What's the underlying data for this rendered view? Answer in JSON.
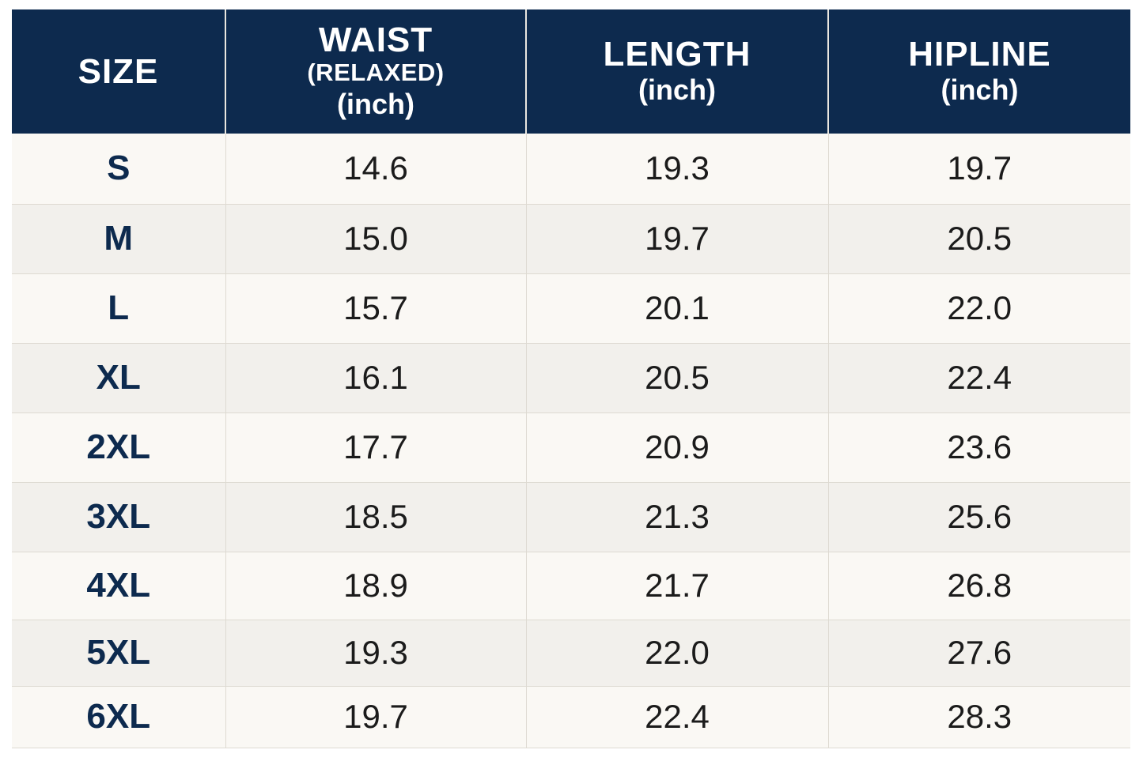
{
  "colors": {
    "header_bg": "#0d2a4e",
    "header_text": "#ffffff",
    "size_text": "#0d2a4e",
    "value_text": "#1b1b1b",
    "row_light": "#faf8f4",
    "row_dark": "#f2f0ec"
  },
  "header": {
    "size": "SIZE",
    "waist": {
      "title": "WAIST",
      "note": "(RELAXED)",
      "unit": "(inch)"
    },
    "length": {
      "title": "LENGTH",
      "unit": "(inch)"
    },
    "hipline": {
      "title": "HIPLINE",
      "unit": "(inch)"
    }
  },
  "rows": [
    {
      "size": "S",
      "waist": "14.6",
      "length": "19.3",
      "hipline": "19.7"
    },
    {
      "size": "M",
      "waist": "15.0",
      "length": "19.7",
      "hipline": "20.5"
    },
    {
      "size": "L",
      "waist": "15.7",
      "length": "20.1",
      "hipline": "22.0"
    },
    {
      "size": "XL",
      "waist": "16.1",
      "length": "20.5",
      "hipline": "22.4"
    },
    {
      "size": "2XL",
      "waist": "17.7",
      "length": "20.9",
      "hipline": "23.6"
    },
    {
      "size": "3XL",
      "waist": "18.5",
      "length": "21.3",
      "hipline": "25.6"
    },
    {
      "size": "4XL",
      "waist": "18.9",
      "length": "21.7",
      "hipline": "26.8"
    },
    {
      "size": "5XL",
      "waist": "19.3",
      "length": "22.0",
      "hipline": "27.6"
    },
    {
      "size": "6XL",
      "waist": "19.7",
      "length": "22.4",
      "hipline": "28.3"
    }
  ]
}
